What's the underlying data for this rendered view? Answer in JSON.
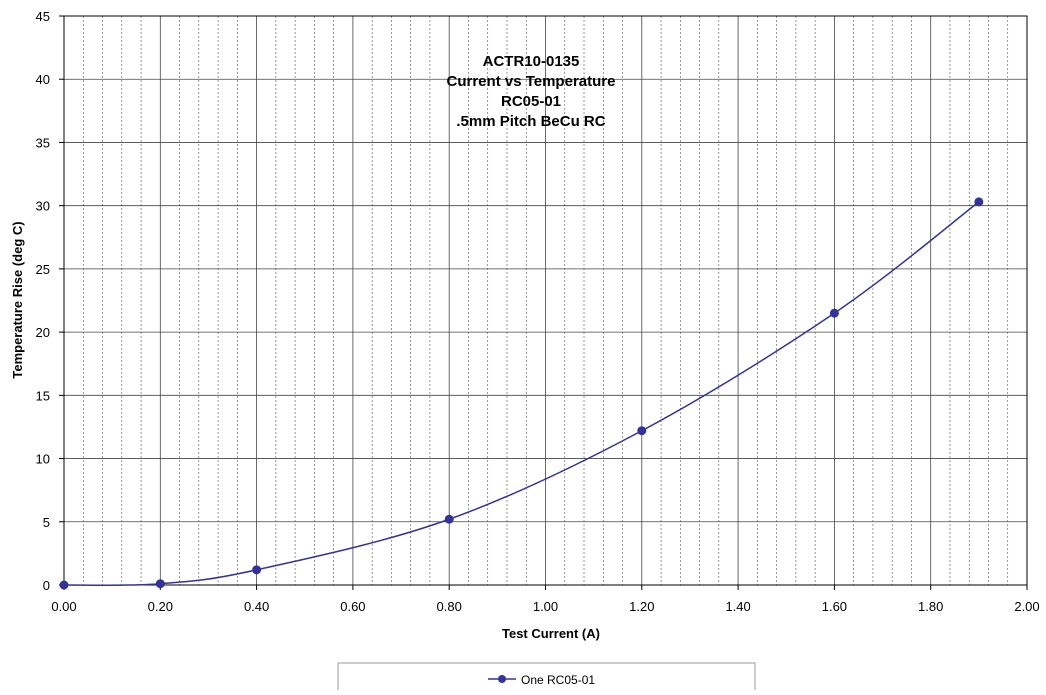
{
  "chart_data": {
    "type": "line",
    "title_lines": [
      "ACTR10-0135",
      "Current vs Temperature",
      "RC05-01",
      ".5mm Pitch BeCu RC"
    ],
    "xlabel": "Test Current (A)",
    "ylabel": "Temperature Rise (deg C)",
    "xlim": [
      0,
      2.0
    ],
    "ylim": [
      0,
      45
    ],
    "x_ticks": [
      "0.00",
      "0.20",
      "0.40",
      "0.60",
      "0.80",
      "1.00",
      "1.20",
      "1.40",
      "1.60",
      "1.80",
      "2.00"
    ],
    "y_ticks": [
      "0",
      "5",
      "10",
      "15",
      "20",
      "25",
      "30",
      "35",
      "40",
      "45"
    ],
    "grid": true,
    "legend_position": "bottom",
    "series": [
      {
        "name": "One RC05-01",
        "color": "#333399",
        "x": [
          0.0,
          0.2,
          0.4,
          0.8,
          1.2,
          1.6,
          1.9
        ],
        "y": [
          0.0,
          0.1,
          1.2,
          5.2,
          12.2,
          21.5,
          30.3
        ]
      }
    ]
  }
}
